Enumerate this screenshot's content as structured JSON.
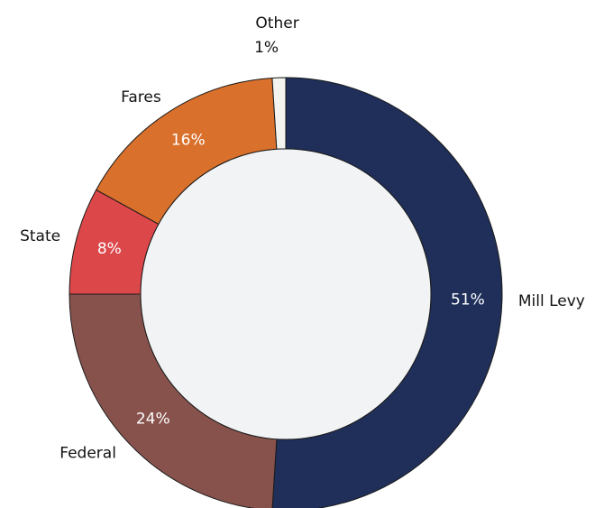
{
  "chart_data": {
    "type": "donut",
    "categories": [
      "Mill Levy",
      "Federal",
      "State",
      "Fares",
      "Other"
    ],
    "values": [
      51,
      24,
      8,
      16,
      1
    ],
    "value_labels": [
      "51%",
      "24%",
      "8%",
      "16%",
      "1%"
    ],
    "colors": [
      "#1f2f5a",
      "#87524c",
      "#dc474a",
      "#d9702b",
      "#f3f3ef"
    ]
  }
}
